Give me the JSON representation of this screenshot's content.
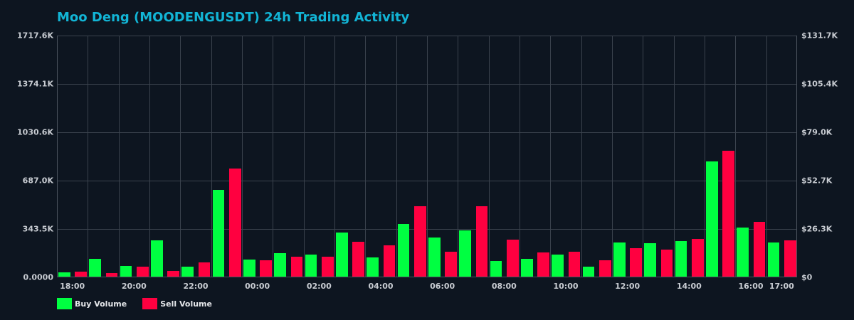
{
  "title": "Moo Deng (MOODENGUSDT) 24h Trading Activity",
  "colors": {
    "background": "#0d1520",
    "title": "#12b5d6",
    "grid": "#3a424d",
    "buy": "#00ff41",
    "sell": "#ff0040",
    "tick_text": "#c8ccd2"
  },
  "legend": [
    {
      "name": "Buy Volume",
      "color": "#00ff41"
    },
    {
      "name": "Sell Volume",
      "color": "#ff0040"
    }
  ],
  "chart_data": {
    "type": "bar",
    "title": "Moo Deng (MOODENGUSDT) 24h Trading Activity",
    "xlabel": "",
    "ylabel": "",
    "ylim": [
      0,
      1717.6
    ],
    "y_unit": "K",
    "y2lim": [
      0,
      131.7
    ],
    "y2_unit": "$K",
    "grid": true,
    "legend_position": "bottom-left",
    "yticks_left": [
      "0.0000",
      "343.5K",
      "687.0K",
      "1030.6K",
      "1374.1K",
      "1717.6K"
    ],
    "yticks_right": [
      "$0",
      "$26.3K",
      "$52.7K",
      "$79.0K",
      "$105.4K",
      "$131.7K"
    ],
    "xtick_labels": [
      {
        "slot": 0,
        "label": "18:00"
      },
      {
        "slot": 2,
        "label": "20:00"
      },
      {
        "slot": 4,
        "label": "22:00"
      },
      {
        "slot": 6,
        "label": "00:00"
      },
      {
        "slot": 8,
        "label": "02:00"
      },
      {
        "slot": 10,
        "label": "04:00"
      },
      {
        "slot": 12,
        "label": "06:00"
      },
      {
        "slot": 14,
        "label": "08:00"
      },
      {
        "slot": 16,
        "label": "10:00"
      },
      {
        "slot": 18,
        "label": "12:00"
      },
      {
        "slot": 20,
        "label": "14:00"
      },
      {
        "slot": 22,
        "label": "16:00"
      },
      {
        "slot": 23,
        "label": "17:00"
      }
    ],
    "categories": [
      "18:00",
      "19:00",
      "20:00",
      "21:00",
      "22:00",
      "23:00",
      "00:00",
      "01:00",
      "02:00",
      "03:00",
      "04:00",
      "05:00",
      "06:00",
      "07:00",
      "08:00",
      "09:00",
      "10:00",
      "11:00",
      "12:00",
      "13:00",
      "14:00",
      "15:00",
      "16:00",
      "17:00"
    ],
    "series": [
      {
        "name": "Buy Volume",
        "color": "#00ff41",
        "values": [
          35,
          131,
          81,
          263,
          76,
          621,
          126,
          172,
          162,
          318,
          141,
          379,
          283,
          333,
          116,
          131,
          162,
          76,
          248,
          242,
          258,
          823,
          354,
          248
        ]
      },
      {
        "name": "Sell Volume",
        "color": "#ff0040",
        "values": [
          40,
          30,
          76,
          45,
          106,
          773,
          121,
          147,
          147,
          253,
          227,
          505,
          182,
          505,
          268,
          177,
          182,
          121,
          207,
          197,
          273,
          899,
          394,
          263
        ]
      }
    ]
  }
}
